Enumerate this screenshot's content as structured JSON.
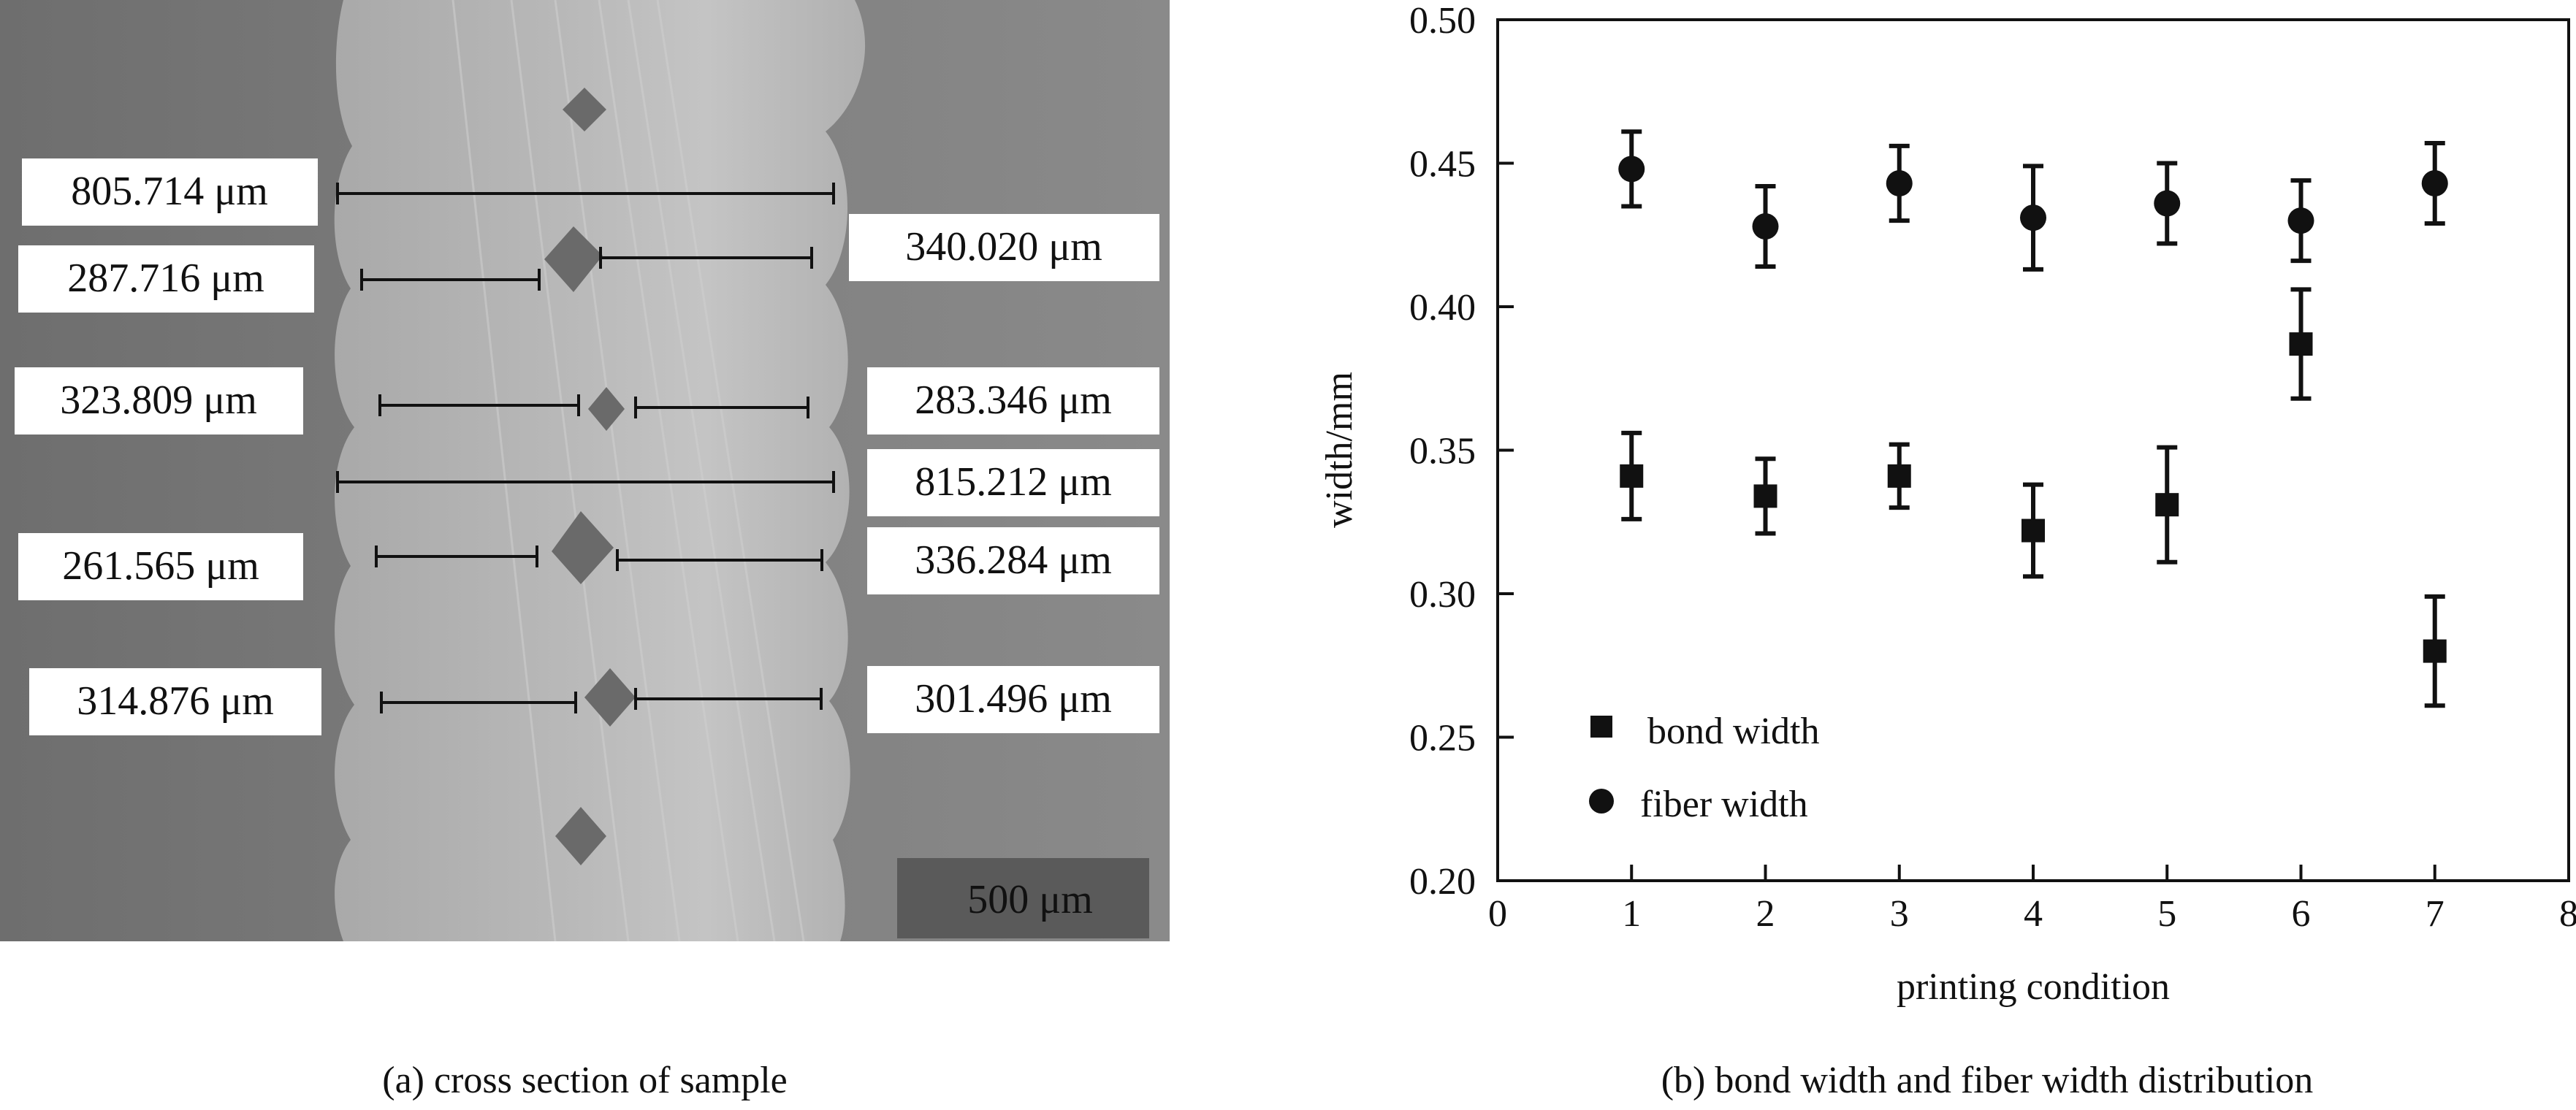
{
  "micrograph": {
    "measurements": [
      "805.714 μm",
      "287.716 μm",
      "340.020 μm",
      "323.809 μm",
      "283.346 μm",
      "815.212 μm",
      "261.565 μm",
      "336.284 μm",
      "314.876 μm",
      "301.496 μm"
    ],
    "scale_bar": "500 μm"
  },
  "captions": {
    "a": "(a) cross section of sample",
    "b": "(b) bond width and fiber width distribution"
  },
  "chart_data": {
    "type": "scatter",
    "xlabel": "printing condition",
    "ylabel": "width/mm",
    "xlim": [
      0,
      8
    ],
    "ylim": [
      0.2,
      0.5
    ],
    "xticks": [
      0,
      1,
      2,
      3,
      4,
      5,
      6,
      7,
      8
    ],
    "yticks": [
      0.2,
      0.25,
      0.3,
      0.35,
      0.4,
      0.45,
      0.5
    ],
    "ytick_labels": [
      "0.20",
      "0.25",
      "0.30",
      "0.35",
      "0.40",
      "0.45",
      "0.50"
    ],
    "grid": false,
    "legend_position": "bottom-left",
    "series": [
      {
        "name": "bond width",
        "marker": "square",
        "x": [
          1,
          2,
          3,
          4,
          5,
          6,
          7
        ],
        "y": [
          0.341,
          0.334,
          0.341,
          0.322,
          0.331,
          0.387,
          0.28
        ],
        "err": [
          0.015,
          0.013,
          0.011,
          0.016,
          0.02,
          0.019,
          0.019
        ]
      },
      {
        "name": "fiber width",
        "marker": "circle",
        "x": [
          1,
          2,
          3,
          4,
          5,
          6,
          7
        ],
        "y": [
          0.448,
          0.428,
          0.443,
          0.431,
          0.436,
          0.43,
          0.443
        ],
        "err": [
          0.013,
          0.014,
          0.013,
          0.018,
          0.014,
          0.014,
          0.014
        ]
      }
    ]
  }
}
